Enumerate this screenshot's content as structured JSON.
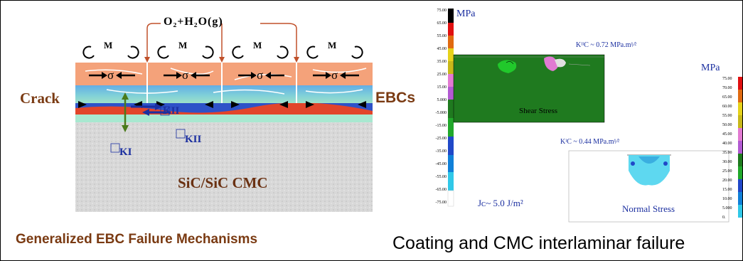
{
  "left_diagram": {
    "crack_label": "Crack",
    "ebcs_label": "EBCs",
    "gas_label": "O₂+H₂O(g)",
    "moment_label": "M",
    "stress_label": "σ",
    "k2_label": "KII",
    "k1_label": "KI",
    "substrate_label": "SiC/SiC CMC",
    "caption": "Generalized EBC Failure Mechanisms"
  },
  "right_diagram": {
    "unit_label": "MPa",
    "colorbar_ticks": [
      "75.00",
      "65.00",
      "55.00",
      "45.00",
      "35.00",
      "25.00",
      "15.00",
      "5.000",
      "-5.000",
      "-15.00",
      "-25.00",
      "-35.00",
      "-45.00",
      "-55.00",
      "-65.00",
      "-75.00"
    ],
    "colorbar2_ticks": [
      "75.00",
      "70.00",
      "65.00",
      "60.00",
      "55.00",
      "50.00",
      "45.00",
      "40.00",
      "35.00",
      "30.00",
      "25.00",
      "20.00",
      "15.00",
      "10.00",
      "5.000",
      "0."
    ],
    "k2c_label": "KᴵᴵC ~ 0.72 MPa.m¹⁄²",
    "k1c_label": "KᴵC ~ 0.44 MPa.m¹⁄²",
    "shear_label": "Shear Stress",
    "normal_label": "Normal Stress",
    "jc_label": "Jᴄ~ 5.0 J/m²",
    "caption": "Coating and CMC interlaminar failure"
  },
  "colors": {
    "caption_brown": "#7a3a12",
    "label_blue": "#1b2fa0",
    "coating_orange": "#f4a27a",
    "shear_green": "#1f7a1f"
  }
}
